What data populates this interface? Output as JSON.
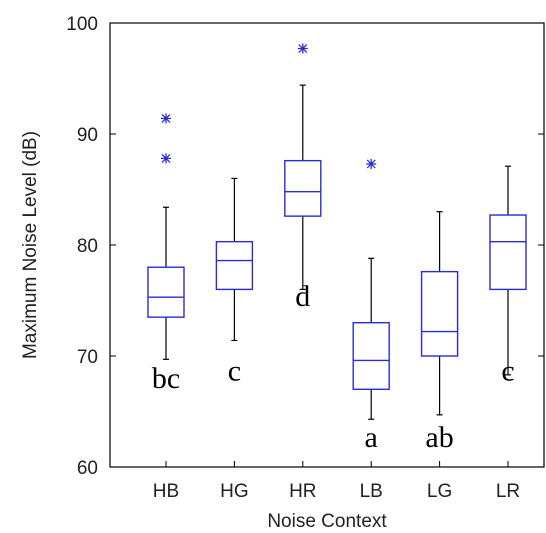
{
  "chart_data": {
    "type": "box",
    "xlabel": "Noise Context",
    "ylabel": "Maximum Noise Level (dB)",
    "ylim": [
      60,
      100
    ],
    "yticks": [
      "60",
      "70",
      "80",
      "90",
      "100"
    ],
    "grid": false,
    "box_color": "#2b2bd6",
    "whisker_color": "#000000",
    "groups": [
      {
        "category": "HB",
        "whisker_low": 69.7,
        "q1": 73.5,
        "median": 75.3,
        "q3": 78.0,
        "whisker_high": 83.4,
        "outliers": [
          87.8,
          91.4
        ],
        "letter": "bc",
        "letter_y": 68.0
      },
      {
        "category": "HG",
        "whisker_low": 71.4,
        "q1": 76.0,
        "median": 78.6,
        "q3": 80.3,
        "whisker_high": 86.0,
        "outliers": [],
        "letter": "c",
        "letter_y": 68.7
      },
      {
        "category": "HR",
        "whisker_low": 76.0,
        "q1": 82.6,
        "median": 84.8,
        "q3": 87.6,
        "whisker_high": 94.4,
        "outliers": [
          97.7
        ],
        "letter": "d",
        "letter_y": 75.4
      },
      {
        "category": "LB",
        "whisker_low": 64.3,
        "q1": 67.0,
        "median": 69.6,
        "q3": 73.0,
        "whisker_high": 78.8,
        "outliers": [
          87.3
        ],
        "letter": "a",
        "letter_y": 62.7
      },
      {
        "category": "LG",
        "whisker_low": 64.7,
        "q1": 70.0,
        "median": 72.2,
        "q3": 77.6,
        "whisker_high": 83.0,
        "outliers": [],
        "letter": "ab",
        "letter_y": 62.7
      },
      {
        "category": "LR",
        "whisker_low": 68.3,
        "q1": 76.0,
        "median": 80.3,
        "q3": 82.7,
        "whisker_high": 87.1,
        "outliers": [],
        "letter": "c",
        "letter_y": 68.7
      }
    ]
  }
}
